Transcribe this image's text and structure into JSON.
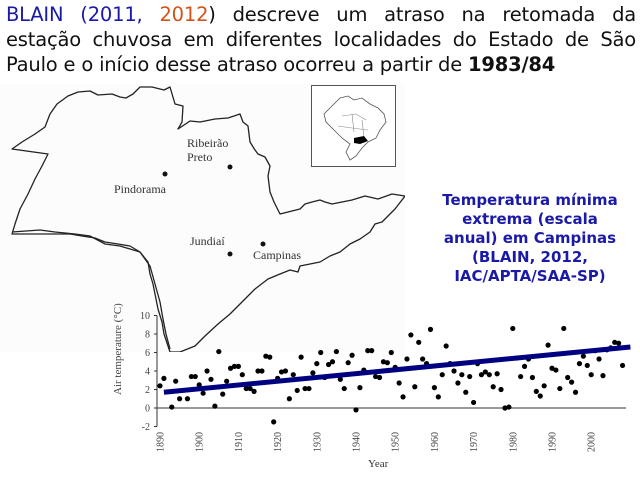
{
  "headline": {
    "author": "BLAIN",
    "open_paren": "(",
    "year1": "2011",
    "comma": ", ",
    "year2": "2012",
    "line1_rest": ") descreve um atraso na retomada da",
    "line2": "estação chuvosa em diferentes localidades do Estado de São",
    "line3_prefix": "Paulo e o início desse atraso ocorreu a partir de ",
    "line3_bold": "1983/84",
    "colors": {
      "author": "#1a1aa6",
      "year2": "#d2541c"
    }
  },
  "map": {
    "cities": [
      {
        "name": "Ribeirão\nPreto",
        "line1": "Ribeirão",
        "line2": "Preto"
      },
      {
        "name": "Pindorama"
      },
      {
        "name": "Jundiaí"
      },
      {
        "name": "Campinas"
      }
    ],
    "inset": "Brazil map with São Paulo state highlighted"
  },
  "caption": {
    "lines": [
      "Temperatura mínima",
      "extrema (escala",
      "anual) em Campinas",
      "(BLAIN, 2012,",
      "IAC/APTA/SAA-SP)"
    ],
    "color": "#1a1aa6"
  },
  "chart_data": {
    "type": "scatter",
    "title": "",
    "xlabel": "Year",
    "ylabel": "Air temperature (°C)",
    "xlim": [
      1890,
      2010
    ],
    "ylim": [
      -2,
      10
    ],
    "x_ticks": [
      "1890",
      "1900",
      "1910",
      "1920",
      "1930",
      "1940",
      "1950",
      "1960",
      "1970",
      "1980",
      "1990",
      "2000"
    ],
    "y_ticks": [
      "10",
      "8",
      "6",
      "4",
      "2",
      "0",
      "-2"
    ],
    "grid": false,
    "trend_line": {
      "x": [
        1891,
        2010
      ],
      "y": [
        1.7,
        6.6
      ],
      "color": "#000080"
    },
    "series": [
      {
        "name": "Annual extreme minimum temperature",
        "x": [
          1890,
          1891,
          1893,
          1894,
          1895,
          1897,
          1898,
          1899,
          1900,
          1901,
          1902,
          1903,
          1904,
          1905,
          1906,
          1907,
          1908,
          1909,
          1910,
          1911,
          1912,
          1913,
          1914,
          1915,
          1916,
          1917,
          1918,
          1919,
          1920,
          1921,
          1922,
          1923,
          1924,
          1925,
          1926,
          1927,
          1928,
          1929,
          1930,
          1931,
          1932,
          1933,
          1934,
          1935,
          1936,
          1937,
          1938,
          1939,
          1940,
          1941,
          1942,
          1943,
          1944,
          1945,
          1946,
          1947,
          1948,
          1949,
          1950,
          1951,
          1952,
          1953,
          1954,
          1955,
          1956,
          1957,
          1958,
          1959,
          1960,
          1961,
          1962,
          1963,
          1964,
          1965,
          1966,
          1967,
          1968,
          1969,
          1970,
          1971,
          1972,
          1973,
          1974,
          1975,
          1976,
          1977,
          1978,
          1979,
          1980,
          1981,
          1982,
          1983,
          1984,
          1985,
          1986,
          1987,
          1988,
          1989,
          1990,
          1991,
          1992,
          1993,
          1994,
          1995,
          1996,
          1997,
          1998,
          1999,
          2000,
          2001,
          2002,
          2003,
          2004,
          2005,
          2006,
          2007,
          2008
        ],
        "values": [
          2.4,
          3.2,
          0.1,
          2.9,
          1.0,
          1.0,
          3.4,
          3.4,
          2.5,
          1.6,
          4.0,
          3.1,
          0.2,
          6.1,
          1.5,
          2.9,
          4.3,
          4.5,
          4.5,
          3.6,
          2.1,
          2.1,
          1.8,
          4.0,
          4.0,
          5.6,
          5.5,
          -1.5,
          3.2,
          3.9,
          4.0,
          1.0,
          3.6,
          1.9,
          5.5,
          2.1,
          2.1,
          3.8,
          4.8,
          6.0,
          3.3,
          4.7,
          5.0,
          6.1,
          3.1,
          2.1,
          4.9,
          5.7,
          -0.2,
          2.2,
          4.1,
          6.2,
          6.2,
          3.4,
          3.3,
          5.0,
          4.9,
          6.0,
          4.4,
          2.7,
          1.2,
          5.3,
          7.9,
          2.3,
          7.1,
          5.3,
          4.8,
          8.5,
          2.2,
          1.2,
          3.6,
          6.7,
          4.8,
          4.0,
          2.7,
          3.6,
          1.7,
          3.4,
          0.6,
          4.8,
          3.6,
          3.9,
          3.6,
          2.3,
          3.7,
          2.0,
          0.0,
          0.1,
          8.6,
          5.4,
          3.4,
          4.5,
          5.3,
          3.3,
          1.8,
          1.3,
          2.4,
          6.8,
          4.3,
          4.1,
          2.1,
          8.6,
          3.3,
          2.8,
          1.7,
          4.8,
          5.6,
          4.6,
          3.6,
          6.2,
          5.3,
          3.5,
          6.3,
          6.5,
          7.1,
          7.0,
          4.6
        ]
      }
    ]
  }
}
